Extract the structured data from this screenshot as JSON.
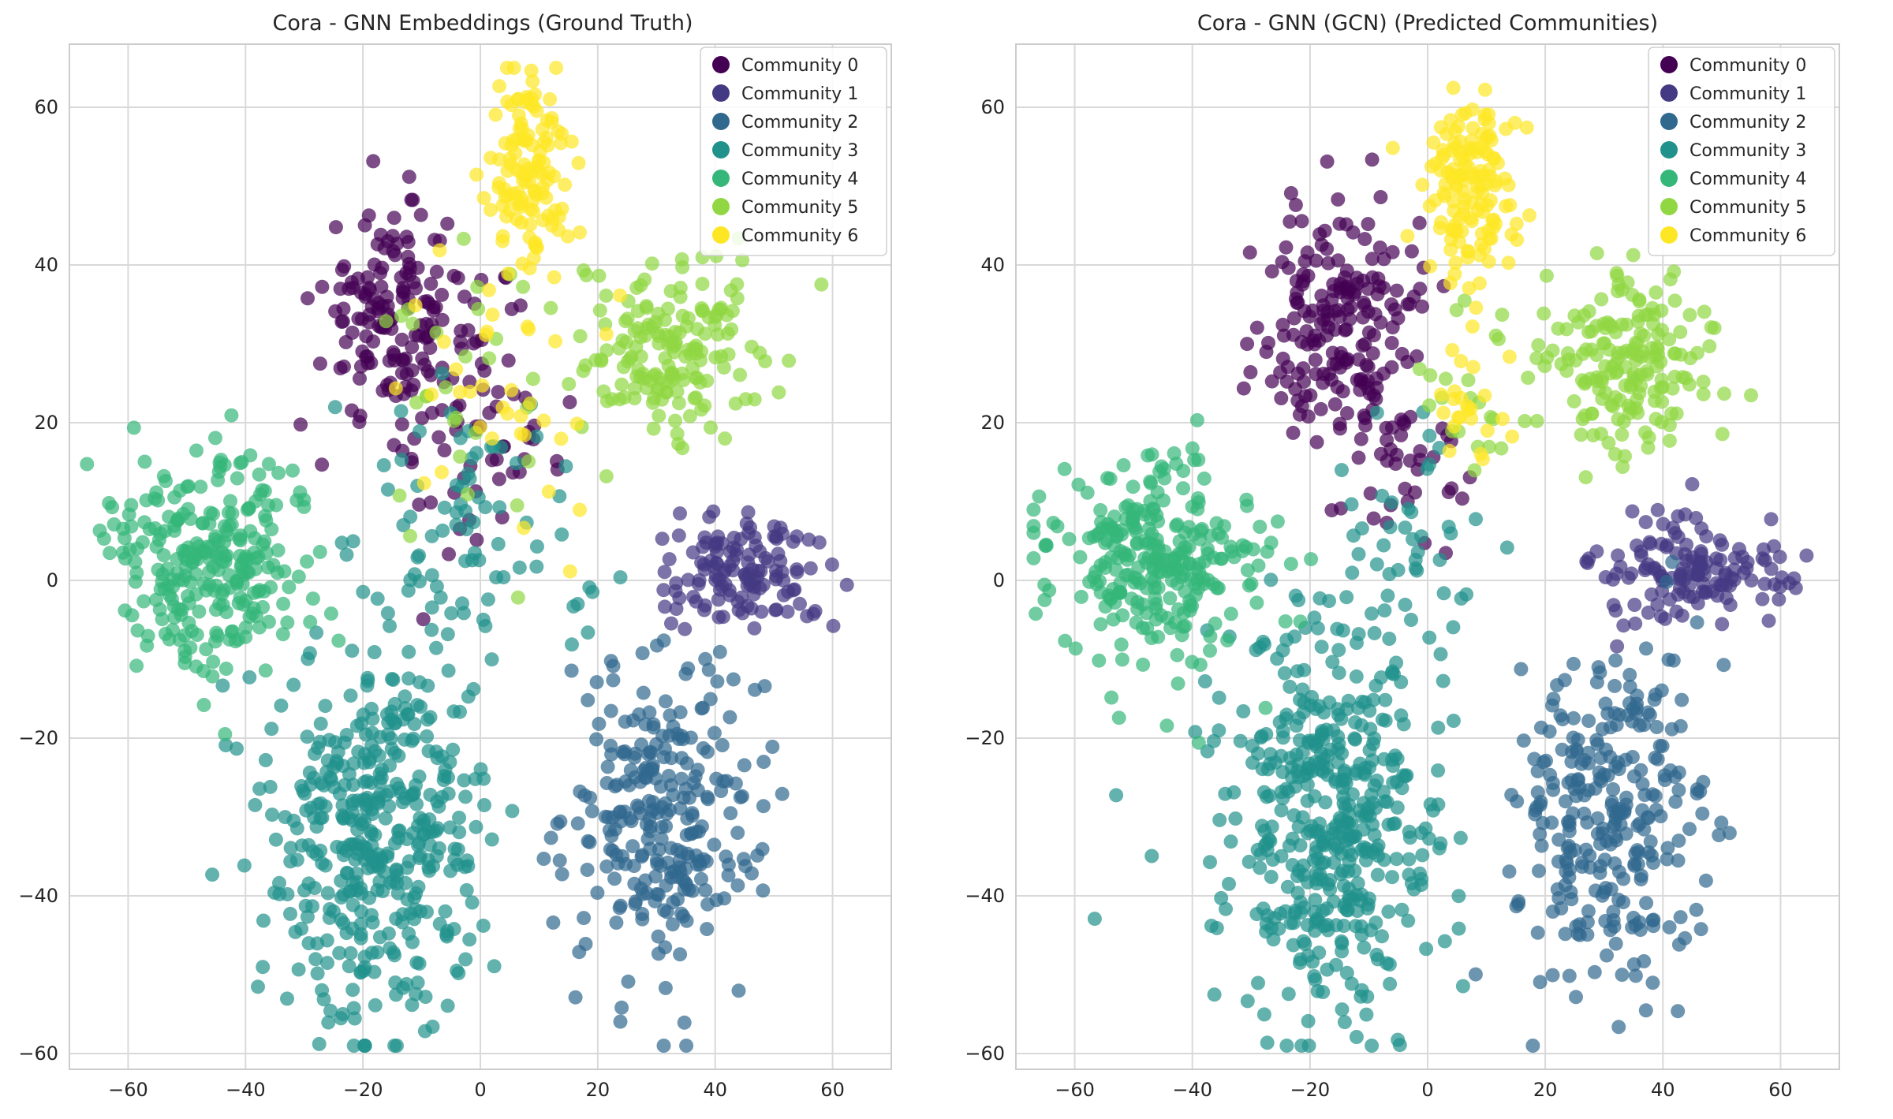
{
  "figure": {
    "layout": "two-panel side-by-side scatter plots",
    "background": "#ffffff"
  },
  "chart_data": [
    {
      "type": "scatter",
      "title": "Cora - GNN Embeddings (Ground Truth)",
      "xlabel": "",
      "ylabel": "",
      "xlim": [
        -70,
        70
      ],
      "ylim": [
        -62,
        68
      ],
      "xticks": [
        -60,
        -40,
        -20,
        0,
        20,
        40,
        60
      ],
      "yticks": [
        -60,
        -40,
        -20,
        0,
        20,
        40,
        60
      ],
      "xtick_labels": [
        "−60",
        "−40",
        "−20",
        "0",
        "20",
        "40",
        "60"
      ],
      "ytick_labels": [
        "−60",
        "−40",
        "−20",
        "0",
        "20",
        "40",
        "60"
      ],
      "grid": true,
      "legend_placement": "top-right",
      "legend": [
        "Community 0",
        "Community 1",
        "Community 2",
        "Community 3",
        "Community 4",
        "Community 5",
        "Community 6"
      ],
      "colors": [
        "#440154",
        "#443983",
        "#31688e",
        "#21918c",
        "#35b779",
        "#90d743",
        "#fde725"
      ],
      "clusters": [
        {
          "community": 0,
          "center": [
            -15,
            34
          ],
          "spread": [
            6,
            7
          ],
          "count": 150
        },
        {
          "community": 0,
          "center": [
            -5,
            24
          ],
          "spread": [
            5,
            6
          ],
          "count": 30
        },
        {
          "community": 0,
          "center": [
            2,
            18
          ],
          "spread": [
            6,
            8
          ],
          "count": 40
        },
        {
          "community": 1,
          "center": [
            45,
            1
          ],
          "spread": [
            8,
            3.5
          ],
          "count": 130
        },
        {
          "community": 2,
          "center": [
            31,
            -30
          ],
          "spread": [
            8,
            10
          ],
          "count": 270
        },
        {
          "community": 3,
          "center": [
            -17,
            -32
          ],
          "spread": [
            9,
            12
          ],
          "count": 420
        },
        {
          "community": 3,
          "center": [
            -2,
            5
          ],
          "spread": [
            10,
            10
          ],
          "count": 80
        },
        {
          "community": 4,
          "center": [
            -46,
            3
          ],
          "spread": [
            9,
            7
          ],
          "count": 270
        },
        {
          "community": 5,
          "center": [
            33,
            29
          ],
          "spread": [
            8,
            6
          ],
          "count": 170
        },
        {
          "community": 5,
          "center": [
            0,
            20
          ],
          "spread": [
            10,
            10
          ],
          "count": 30
        },
        {
          "community": 6,
          "center": [
            8,
            53
          ],
          "spread": [
            3.5,
            6
          ],
          "count": 120
        },
        {
          "community": 6,
          "center": [
            4,
            28
          ],
          "spread": [
            8,
            10
          ],
          "count": 40
        }
      ]
    },
    {
      "type": "scatter",
      "title": "Cora - GNN (GCN) (Predicted Communities)",
      "xlabel": "",
      "ylabel": "",
      "xlim": [
        -70,
        70
      ],
      "ylim": [
        -62,
        68
      ],
      "xticks": [
        -60,
        -40,
        -20,
        0,
        20,
        40,
        60
      ],
      "yticks": [
        -60,
        -40,
        -20,
        0,
        20,
        40,
        60
      ],
      "xtick_labels": [
        "−60",
        "−40",
        "−20",
        "0",
        "20",
        "40",
        "60"
      ],
      "ytick_labels": [
        "−60",
        "−40",
        "−20",
        "0",
        "20",
        "40",
        "60"
      ],
      "grid": true,
      "legend_placement": "top-right",
      "legend": [
        "Community 0",
        "Community 1",
        "Community 2",
        "Community 3",
        "Community 4",
        "Community 5",
        "Community 6"
      ],
      "colors": [
        "#440154",
        "#443983",
        "#31688e",
        "#21918c",
        "#35b779",
        "#90d743",
        "#fde725"
      ],
      "clusters": [
        {
          "community": 0,
          "center": [
            -14,
            32
          ],
          "spread": [
            7,
            8
          ],
          "count": 190
        },
        {
          "community": 0,
          "center": [
            -5,
            16
          ],
          "spread": [
            5,
            6
          ],
          "count": 40
        },
        {
          "community": 1,
          "center": [
            45,
            1
          ],
          "spread": [
            8,
            3.5
          ],
          "count": 140
        },
        {
          "community": 2,
          "center": [
            31,
            -30
          ],
          "spread": [
            8,
            10
          ],
          "count": 280
        },
        {
          "community": 3,
          "center": [
            -17,
            -32
          ],
          "spread": [
            9,
            12
          ],
          "count": 450
        },
        {
          "community": 3,
          "center": [
            -5,
            4
          ],
          "spread": [
            8,
            8
          ],
          "count": 50
        },
        {
          "community": 4,
          "center": [
            -46,
            3
          ],
          "spread": [
            9,
            7
          ],
          "count": 280
        },
        {
          "community": 5,
          "center": [
            33,
            28
          ],
          "spread": [
            8,
            6
          ],
          "count": 180
        },
        {
          "community": 5,
          "center": [
            8,
            22
          ],
          "spread": [
            5,
            6
          ],
          "count": 20
        },
        {
          "community": 6,
          "center": [
            8,
            50
          ],
          "spread": [
            4,
            6
          ],
          "count": 140
        },
        {
          "community": 6,
          "center": [
            7,
            22
          ],
          "spread": [
            3,
            5
          ],
          "count": 25
        }
      ]
    }
  ]
}
